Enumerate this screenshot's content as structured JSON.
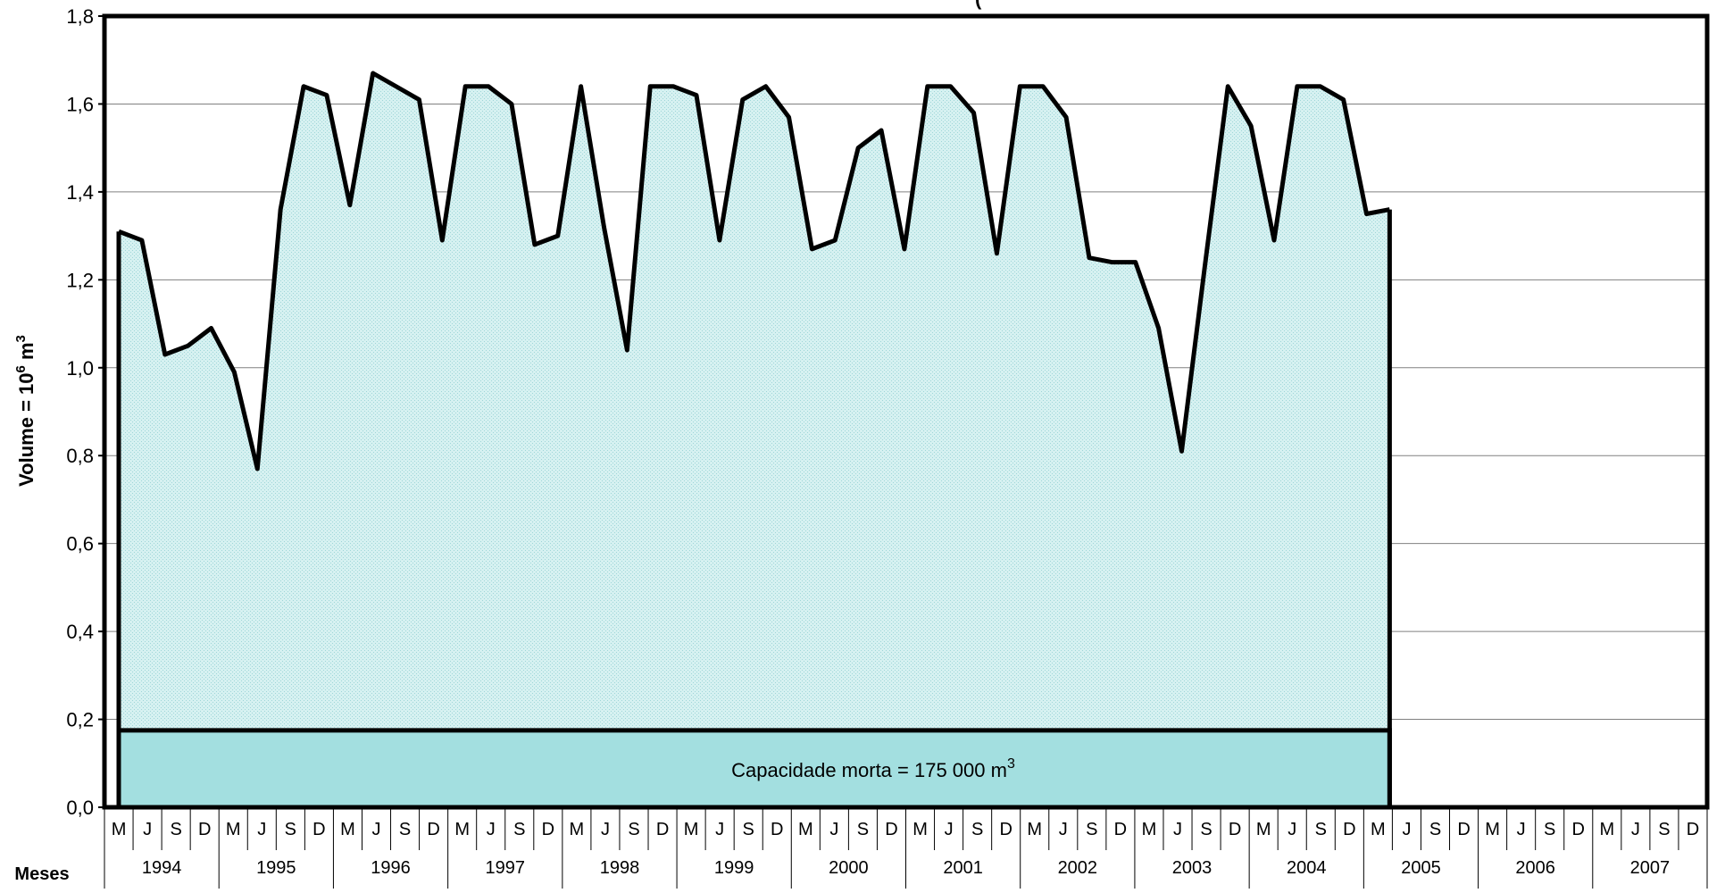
{
  "chart_data": {
    "type": "area",
    "title": "(",
    "ylabel": "Volume = 10",
    "ylabel_exp1": "6",
    "ylabel_mid": " m",
    "ylabel_exp2": "3",
    "ylim": [
      0,
      1.8
    ],
    "yticks": [
      "0,0",
      "0,2",
      "0,4",
      "0,6",
      "0,8",
      "1,0",
      "1,2",
      "1,4",
      "1,6",
      "1,8"
    ],
    "grid": true,
    "x_row_label": "Meses",
    "months": [
      "M",
      "J",
      "S",
      "D"
    ],
    "years": [
      "1994",
      "1995",
      "1996",
      "1997",
      "1998",
      "1999",
      "2000",
      "2001",
      "2002",
      "2003",
      "2004",
      "2005",
      "2006",
      "2007"
    ],
    "series": [
      {
        "values": [
          1.31,
          1.29,
          1.03,
          1.05,
          1.09,
          0.99,
          0.77,
          1.36,
          1.64,
          1.62,
          1.37,
          1.67,
          1.64,
          1.61,
          1.29,
          1.64,
          1.64,
          1.6,
          1.28,
          1.3,
          1.64,
          1.32,
          1.04,
          1.64,
          1.64,
          1.62,
          1.29,
          1.61,
          1.64,
          1.57,
          1.27,
          1.29,
          1.5,
          1.54,
          1.27,
          1.64,
          1.64,
          1.58,
          1.26,
          1.64,
          1.64,
          1.57,
          1.25,
          1.24,
          1.24,
          1.09,
          0.81,
          1.23,
          1.64,
          1.55,
          1.29,
          1.64,
          1.64,
          1.61,
          1.35,
          1.36
        ]
      }
    ],
    "dead_capacity": {
      "value": 0.175,
      "label": "Capacidade morta = 175 000 m",
      "label_exp": "3"
    },
    "colors": {
      "area": "#cfeeee",
      "dead": "#a3dfe0",
      "line": "#000000",
      "grid": "#808080"
    }
  }
}
